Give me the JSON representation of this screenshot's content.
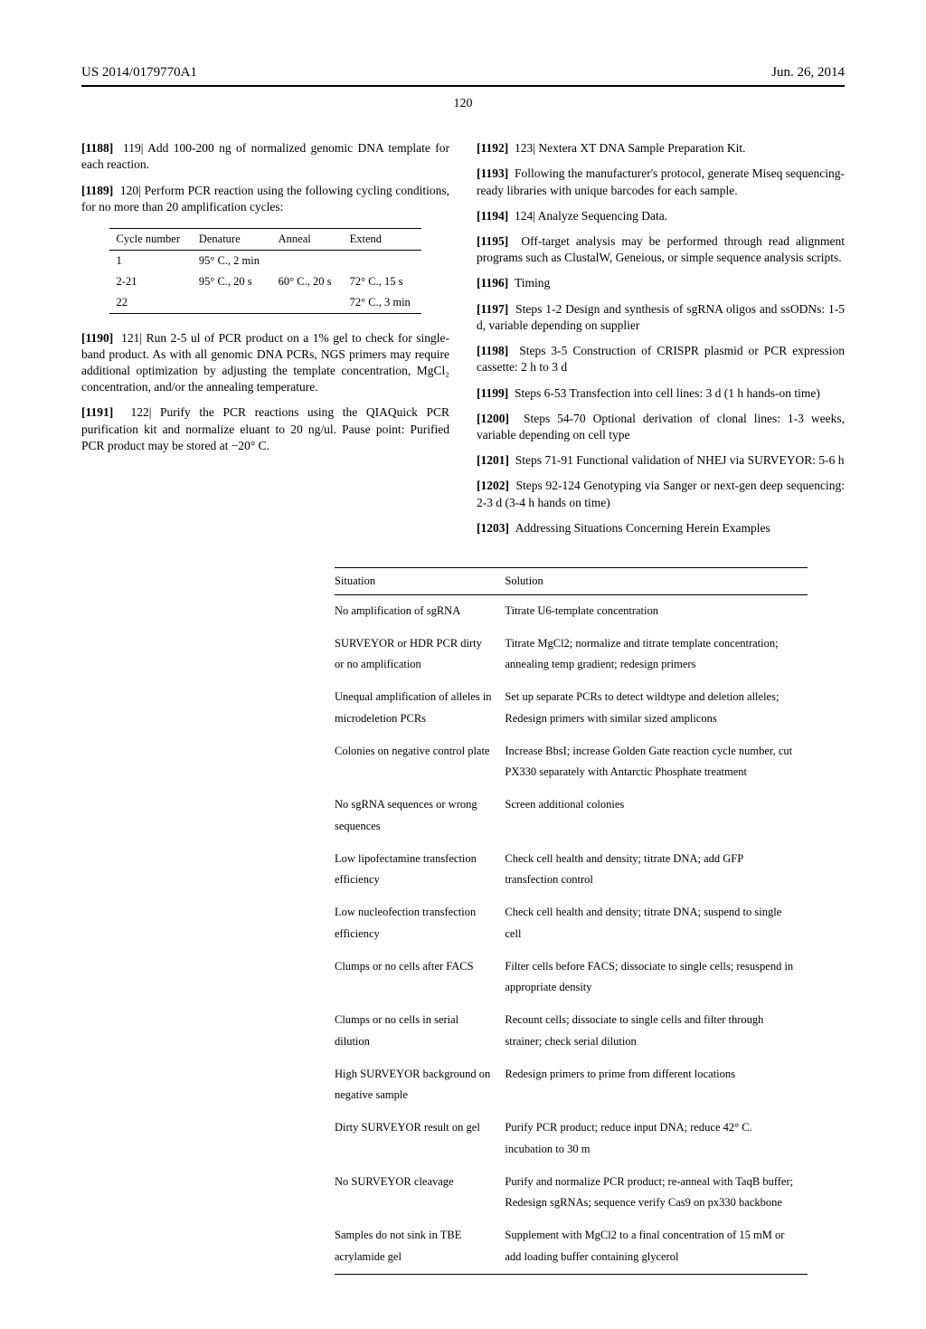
{
  "header": {
    "pub_number": "US 2014/0179770A1",
    "date": "Jun. 26, 2014",
    "page_number": "120"
  },
  "paragraphs": {
    "p1188": {
      "num": "[1188]",
      "text": "119| Add 100-200 ng of normalized genomic DNA template for each reaction."
    },
    "p1189": {
      "num": "[1189]",
      "text": "120| Perform PCR reaction using the following cycling conditions, for no more than 20 amplification cycles:"
    },
    "p1190": {
      "num": "[1190]",
      "text": "121| Run 2-5 ul of PCR product on a 1% gel to check for single-band product. As with all genomic DNA PCRs, NGS primers may require additional optimization by adjusting the template concentration, MgCl₂ concentration, and/or the annealing temperature."
    },
    "p1191": {
      "num": "[1191]",
      "text": "122| Purify the PCR reactions using the QIAQuick PCR purification kit and normalize eluant to 20 ng/ul. Pause point: Purified PCR product may be stored at −20° C."
    },
    "p1192": {
      "num": "[1192]",
      "text": "123| Nextera XT DNA Sample Preparation Kit."
    },
    "p1193": {
      "num": "[1193]",
      "text": "Following the manufacturer's protocol, generate Miseq sequencing-ready libraries with unique barcodes for each sample."
    },
    "p1194": {
      "num": "[1194]",
      "text": "124| Analyze Sequencing Data."
    },
    "p1195": {
      "num": "[1195]",
      "text": "Off-target analysis may be performed through read alignment programs such as ClustalW, Geneious, or simple sequence analysis scripts."
    },
    "p1196": {
      "num": "[1196]",
      "text": "Timing"
    },
    "p1197": {
      "num": "[1197]",
      "text": "Steps 1-2 Design and synthesis of sgRNA oligos and ssODNs: 1-5 d, variable depending on supplier"
    },
    "p1198": {
      "num": "[1198]",
      "text": "Steps 3-5 Construction of CRISPR plasmid or PCR expression cassette: 2 h to 3 d"
    },
    "p1199": {
      "num": "[1199]",
      "text": "Steps 6-53 Transfection into cell lines: 3 d (1 h hands-on time)"
    },
    "p1200": {
      "num": "[1200]",
      "text": "Steps 54-70 Optional derivation of clonal lines: 1-3 weeks, variable depending on cell type"
    },
    "p1201": {
      "num": "[1201]",
      "text": "Steps 71-91 Functional validation of NHEJ via SURVEYOR: 5-6 h"
    },
    "p1202": {
      "num": "[1202]",
      "text": "Steps 92-124 Genotyping via Sanger or next-gen deep sequencing: 2-3 d (3-4 h hands on time)"
    },
    "p1203": {
      "num": "[1203]",
      "text": "Addressing Situations Concerning Herein Examples"
    }
  },
  "pcr_table": {
    "headers": [
      "Cycle number",
      "Denature",
      "Anneal",
      "Extend"
    ],
    "rows": [
      [
        "1",
        "95° C., 2 min",
        "",
        ""
      ],
      [
        "2-21",
        "95° C., 20 s",
        "60° C., 20 s",
        "72° C., 15 s"
      ],
      [
        "22",
        "",
        "",
        "72° C., 3 min"
      ]
    ],
    "font_size": 12.5,
    "border_color": "#000000"
  },
  "troubleshoot_table": {
    "headers": [
      "Situation",
      "Solution"
    ],
    "rows": [
      [
        "No amplification of sgRNA",
        "Titrate U6-template concentration"
      ],
      [
        "SURVEYOR or HDR PCR dirty or no amplification",
        "Titrate MgCl2; normalize and titrate template concentration; annealing temp gradient; redesign primers"
      ],
      [
        "Unequal amplification of alleles in microdeletion PCRs",
        "Set up separate PCRs to detect wildtype and deletion alleles; Redesign primers with similar sized amplicons"
      ],
      [
        "Colonies on negative control plate",
        "Increase BbsI; increase Golden Gate reaction cycle number, cut PX330 separately with Antarctic Phosphate treatment"
      ],
      [
        "No sgRNA sequences or wrong sequences",
        "Screen additional colonies"
      ],
      [
        "Low lipofectamine transfection efficiency",
        "Check cell health and density; titrate DNA; add GFP transfection control"
      ],
      [
        "Low nucleofection transfection efficiency",
        "Check cell health and density; titrate DNA; suspend to single cell"
      ],
      [
        "Clumps or no cells after FACS",
        "Filter cells before FACS; dissociate to single cells; resuspend in appropriate density"
      ],
      [
        "Clumps or no cells in serial dilution",
        "Recount cells; dissociate to single cells and filter through strainer; check serial dilution"
      ],
      [
        "High SURVEYOR background on negative sample",
        "Redesign primers to prime from different locations"
      ],
      [
        "Dirty SURVEYOR result on gel",
        "Purify PCR product; reduce input DNA; reduce 42° C. incubation to 30 m"
      ],
      [
        "No SURVEYOR cleavage",
        "Purify and normalize PCR product; re-anneal with TaqB buffer; Redesign sgRNAs; sequence verify Cas9 on px330 backbone"
      ],
      [
        "Samples do not sink in TBE acrylamide gel",
        "Supplement with MgCl2 to a final concentration of 15 mM or add loading buffer containing glycerol"
      ]
    ],
    "font_size": 12.5,
    "border_color": "#000000"
  }
}
